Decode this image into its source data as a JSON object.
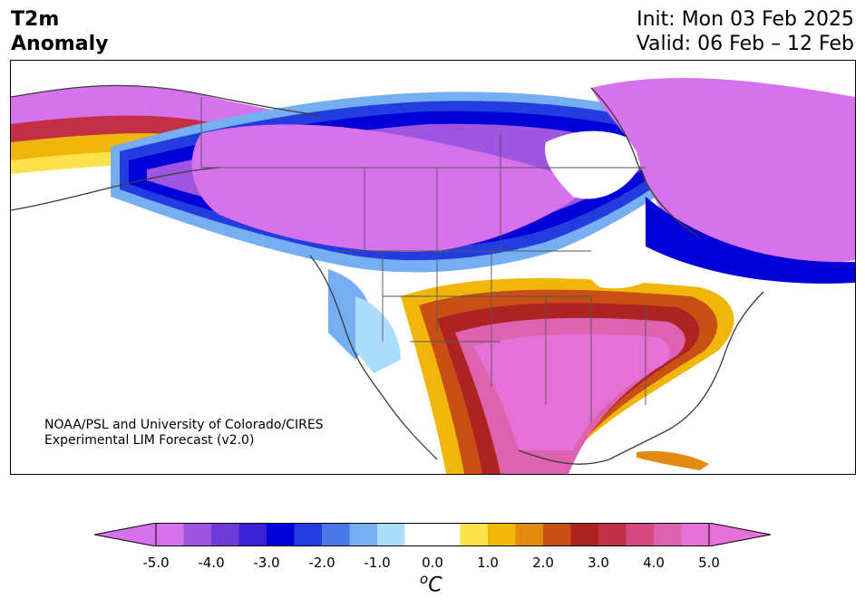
{
  "title": {
    "variable_line1": "T2m",
    "variable_line2": "Anomaly",
    "init": "Init: Mon 03 Feb 2025",
    "valid": "Valid: 06 Feb – 12 Feb"
  },
  "credit": {
    "line1": "NOAA/PSL and University of Colorado/CIRES",
    "line2": "Experimental LIM Forecast (v2.0)"
  },
  "colorbar": {
    "ticks": [
      "-5.0",
      "-4.0",
      "-3.0",
      "-2.0",
      "-1.0",
      "0.0",
      "1.0",
      "2.0",
      "3.0",
      "4.0",
      "5.0"
    ],
    "units_sup": "o",
    "units_main": "C",
    "colors": [
      "#d672ec",
      "#9e55e0",
      "#6d3bd9",
      "#3a1fd4",
      "#0000d8",
      "#233ce0",
      "#4a78e6",
      "#76aef2",
      "#acdcfb",
      "#ffffff",
      "#ffffff",
      "#fde24b",
      "#f1b60a",
      "#e08a0f",
      "#c95015",
      "#ae2322",
      "#c33046",
      "#d4497e",
      "#dd62b0",
      "#e671d6"
    ],
    "extend_min_color": "#d672ec",
    "extend_max_color": "#e671d6"
  }
}
